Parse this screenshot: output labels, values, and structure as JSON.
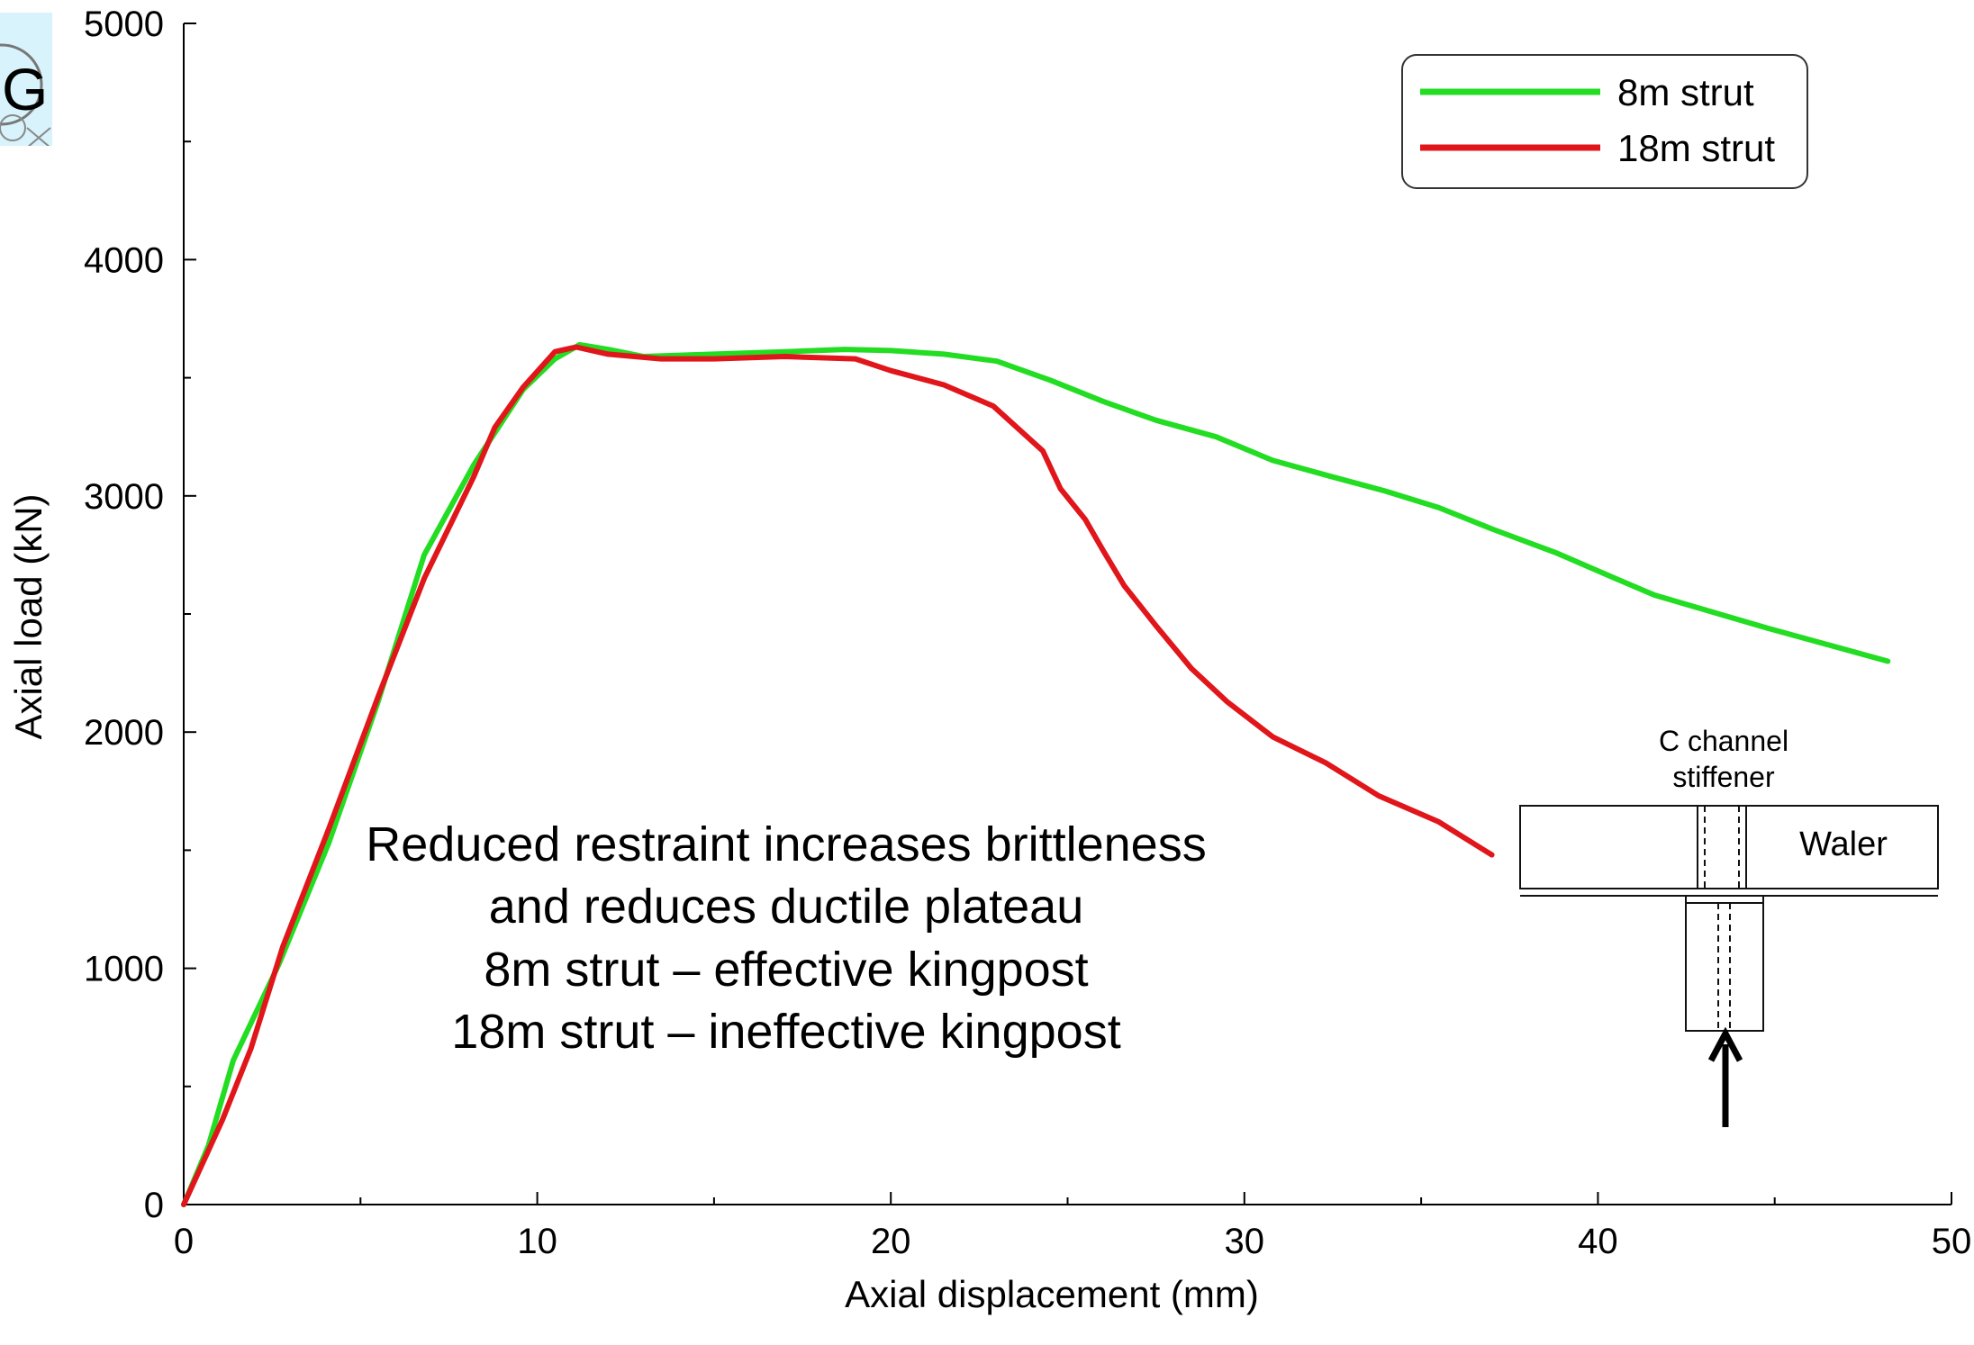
{
  "chart_data": {
    "type": "line",
    "title": "",
    "xlabel": "Axial displacement (mm)",
    "ylabel": "Axial load (kN)",
    "xlim": [
      0,
      50
    ],
    "ylim": [
      0,
      5000
    ],
    "xticks": [
      0,
      10,
      20,
      30,
      40,
      50
    ],
    "yticks": [
      0,
      1000,
      2000,
      3000,
      4000,
      5000
    ],
    "grid": false,
    "legend_position": "top-right",
    "series": [
      {
        "name": "8m strut",
        "color": "#22dd22",
        "x": [
          0,
          0.7,
          1.4,
          2.7,
          4.1,
          5.5,
          6.8,
          8.2,
          9.6,
          10.5,
          11.2,
          12.0,
          13.0,
          15.0,
          17.0,
          18.7,
          20.0,
          21.5,
          23.0,
          24.5,
          26.0,
          27.5,
          29.2,
          30.8,
          32.5,
          34.0,
          35.5,
          37.0,
          38.8,
          40.5,
          41.6,
          43.2,
          44.8,
          46.5,
          48.2
        ],
        "y": [
          0,
          250,
          610,
          1020,
          1530,
          2130,
          2750,
          3130,
          3450,
          3580,
          3640,
          3620,
          3590,
          3600,
          3610,
          3620,
          3615,
          3600,
          3570,
          3490,
          3400,
          3320,
          3250,
          3150,
          3080,
          3020,
          2950,
          2860,
          2760,
          2650,
          2580,
          2510,
          2440,
          2370,
          2300
        ]
      },
      {
        "name": "18m strut",
        "color": "#e0161b",
        "x": [
          0,
          1.1,
          1.9,
          2.8,
          4.1,
          5.5,
          6.8,
          8.2,
          8.8,
          9.6,
          10.5,
          11.1,
          12.0,
          13.5,
          15.0,
          17.0,
          19.0,
          20.0,
          21.5,
          22.9,
          24.3,
          24.8,
          25.5,
          26.0,
          26.6,
          27.5,
          28.5,
          29.5,
          30.8,
          32.3,
          33.8,
          35.5,
          37.0
        ],
        "y": [
          0,
          360,
          660,
          1090,
          1590,
          2150,
          2650,
          3080,
          3290,
          3460,
          3610,
          3630,
          3600,
          3580,
          3580,
          3590,
          3580,
          3530,
          3470,
          3380,
          3190,
          3030,
          2900,
          2770,
          2620,
          2450,
          2270,
          2130,
          1980,
          1870,
          1730,
          1620,
          1480
        ]
      }
    ],
    "annotations": [
      "Reduced restraint increases brittleness",
      "and reduces ductile plateau",
      "8m strut – effective kingpost",
      "18m strut – ineffective kingpost"
    ]
  },
  "inset": {
    "stiffener_label_line1": "C channel",
    "stiffener_label_line2": "stiffener",
    "waler_label": "Waler"
  },
  "logo": {
    "letter": "G",
    "color": "#d8f3fb"
  }
}
